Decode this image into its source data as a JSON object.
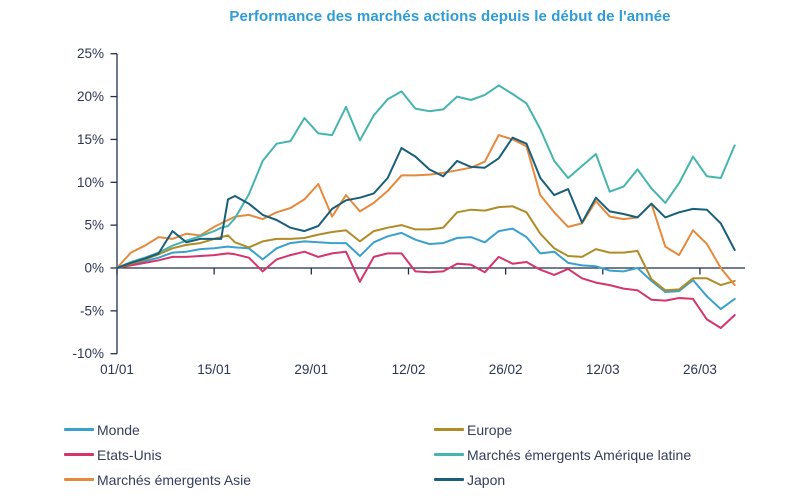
{
  "title": "Performance des marchés actions depuis le début de l'année",
  "colors": {
    "title": "#2E9CD6",
    "axis": "#222F4E",
    "tick_text": "#2C3655",
    "legend_text": "#343E5C",
    "background": "#FFFFFF"
  },
  "chart_data": {
    "type": "line",
    "title": "Performance des marchés actions depuis le début de l'année",
    "xlabel": "",
    "ylabel": "",
    "ylim": [
      -10,
      25
    ],
    "grid": false,
    "legend_position": "bottom",
    "y_tick_values": [
      25,
      20,
      15,
      10,
      5,
      0,
      -5,
      -10
    ],
    "y_tick_labels": [
      "25%",
      "20%",
      "15%",
      "10%",
      "5%",
      "0%",
      "-5%",
      "-10%"
    ],
    "x_ticks": [
      {
        "day": 0,
        "label": "01/01"
      },
      {
        "day": 14,
        "label": "15/01"
      },
      {
        "day": 28,
        "label": "29/01"
      },
      {
        "day": 42,
        "label": "12/02"
      },
      {
        "day": 56,
        "label": "26/02"
      },
      {
        "day": 70,
        "label": "12/03"
      },
      {
        "day": 84,
        "label": "26/03"
      }
    ],
    "x_days": [
      0,
      2,
      4,
      6,
      8,
      10,
      12,
      14,
      15,
      16,
      17,
      19,
      21,
      23,
      25,
      27,
      29,
      31,
      33,
      35,
      37,
      39,
      41,
      43,
      45,
      47,
      49,
      51,
      53,
      55,
      57,
      59,
      61,
      63,
      65,
      67,
      69,
      71,
      73,
      75,
      77,
      79,
      81,
      83,
      85,
      87,
      89
    ],
    "series": [
      {
        "id": "monde",
        "name": "Monde",
        "color": "#3AA0CC",
        "values": [
          0,
          0.4,
          0.8,
          1.2,
          1.8,
          1.9,
          2.2,
          2.3,
          2.4,
          2.5,
          2.4,
          2.3,
          1.0,
          2.3,
          2.9,
          3.1,
          3.0,
          2.9,
          2.9,
          1.4,
          3.0,
          3.7,
          4.1,
          3.3,
          2.8,
          2.9,
          3.5,
          3.6,
          3.0,
          4.3,
          4.6,
          3.6,
          1.7,
          1.9,
          0.6,
          0.3,
          0.2,
          -0.3,
          -0.4,
          0.0,
          -1.5,
          -2.8,
          -2.7,
          -1.4,
          -3.3,
          -4.8,
          -3.6
        ]
      },
      {
        "id": "etats-unis",
        "name": "Etats-Unis",
        "color": "#D4356B",
        "values": [
          0,
          0.3,
          0.6,
          0.9,
          1.3,
          1.3,
          1.4,
          1.5,
          1.6,
          1.7,
          1.6,
          1.2,
          -0.4,
          1.0,
          1.5,
          1.9,
          1.3,
          1.7,
          1.9,
          -1.6,
          1.3,
          1.7,
          1.7,
          -0.4,
          -0.5,
          -0.4,
          0.5,
          0.4,
          -0.5,
          1.3,
          0.5,
          0.7,
          -0.2,
          -0.8,
          -0.1,
          -1.2,
          -1.7,
          -2.0,
          -2.4,
          -2.6,
          -3.7,
          -3.8,
          -3.5,
          -3.6,
          -6.0,
          -7.0,
          -5.5
        ]
      },
      {
        "id": "europe",
        "name": "Europe",
        "color": "#B08C28",
        "values": [
          0,
          0.5,
          1.0,
          1.6,
          2.3,
          2.7,
          2.9,
          3.4,
          3.6,
          3.8,
          3.0,
          2.4,
          3.1,
          3.4,
          3.4,
          3.5,
          3.9,
          4.2,
          4.4,
          3.1,
          4.3,
          4.7,
          5.0,
          4.5,
          4.5,
          4.7,
          6.5,
          6.8,
          6.7,
          7.1,
          7.2,
          6.5,
          4.0,
          2.3,
          1.4,
          1.3,
          2.2,
          1.8,
          1.8,
          2.0,
          -1.3,
          -2.6,
          -2.5,
          -1.2,
          -1.2,
          -2.0,
          -1.5
        ]
      },
      {
        "id": "asie",
        "name": "Marchés émergents Asie",
        "color": "#E58A3C",
        "values": [
          0,
          1.8,
          2.6,
          3.6,
          3.4,
          4.0,
          3.8,
          4.8,
          5.2,
          5.6,
          6.0,
          6.2,
          5.7,
          6.5,
          7.0,
          8.0,
          9.8,
          6.0,
          8.5,
          6.6,
          7.6,
          9.0,
          10.8,
          10.8,
          10.9,
          11.1,
          11.4,
          11.7,
          12.4,
          15.5,
          15.0,
          14.2,
          8.5,
          6.5,
          4.8,
          5.2,
          7.8,
          6.0,
          5.7,
          5.9,
          7.5,
          2.5,
          1.5,
          4.4,
          2.8,
          0.0,
          -2.0
        ]
      },
      {
        "id": "amerique-latine",
        "name": "Marchés émergents Amérique latine",
        "color": "#45B5AD",
        "values": [
          0,
          0.7,
          1.2,
          1.8,
          2.6,
          3.2,
          3.7,
          4.3,
          4.7,
          4.9,
          5.8,
          8.6,
          12.5,
          14.5,
          14.8,
          17.5,
          15.7,
          15.5,
          18.8,
          14.9,
          17.8,
          19.7,
          20.6,
          18.6,
          18.3,
          18.5,
          20.0,
          19.6,
          20.2,
          21.3,
          20.3,
          19.2,
          16.2,
          12.5,
          10.5,
          11.9,
          13.3,
          8.9,
          9.5,
          11.5,
          9.3,
          7.6,
          9.9,
          13.0,
          10.7,
          10.5,
          14.3
        ]
      },
      {
        "id": "japon",
        "name": "Japon",
        "color": "#1A5F7A",
        "values": [
          0,
          0.6,
          1.1,
          1.7,
          4.3,
          3.0,
          3.4,
          3.4,
          3.4,
          8.0,
          8.4,
          7.5,
          6.2,
          5.6,
          4.7,
          4.3,
          4.9,
          6.9,
          7.9,
          8.2,
          8.7,
          10.5,
          14.0,
          13.0,
          11.5,
          10.7,
          12.5,
          11.8,
          11.7,
          12.8,
          15.2,
          14.5,
          10.5,
          8.5,
          9.2,
          5.3,
          8.2,
          6.6,
          6.3,
          5.9,
          7.5,
          5.9,
          6.5,
          6.9,
          6.8,
          5.2,
          2.1
        ]
      }
    ],
    "legend_columns": [
      [
        "Monde",
        "Etats-Unis",
        "Marchés émergents Asie"
      ],
      [
        "Europe",
        "Marchés émergents Amérique latine",
        "Japon"
      ]
    ]
  }
}
